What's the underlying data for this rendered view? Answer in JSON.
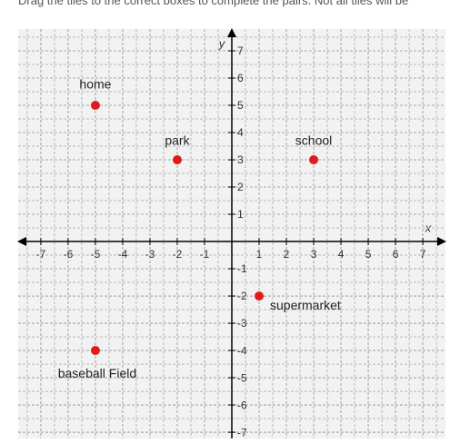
{
  "instruction": "Drag the tiles to the correct boxes to complete the pairs. Not all tiles will be",
  "chart_data": {
    "type": "scatter",
    "xlabel": "x",
    "ylabel": "y",
    "labels": [
      "home",
      "park",
      "school",
      "supermarket",
      "baseball Field"
    ],
    "x": [
      -5,
      -2,
      3,
      1,
      -5
    ],
    "values": [
      5,
      3,
      3,
      -2,
      -4
    ],
    "color": "#e01b1b",
    "xlim": [
      -7.83,
      7.83
    ],
    "ylim": [
      -7.23,
      7.8
    ],
    "xticks": [
      -7,
      -6,
      -5,
      -4,
      -3,
      -2,
      -1,
      1,
      2,
      3,
      4,
      5,
      6,
      7
    ],
    "yticks": [
      -7,
      -6,
      -5,
      -4,
      -3,
      -2,
      -1,
      1,
      2,
      3,
      4,
      5,
      6,
      7
    ],
    "grid": true
  }
}
